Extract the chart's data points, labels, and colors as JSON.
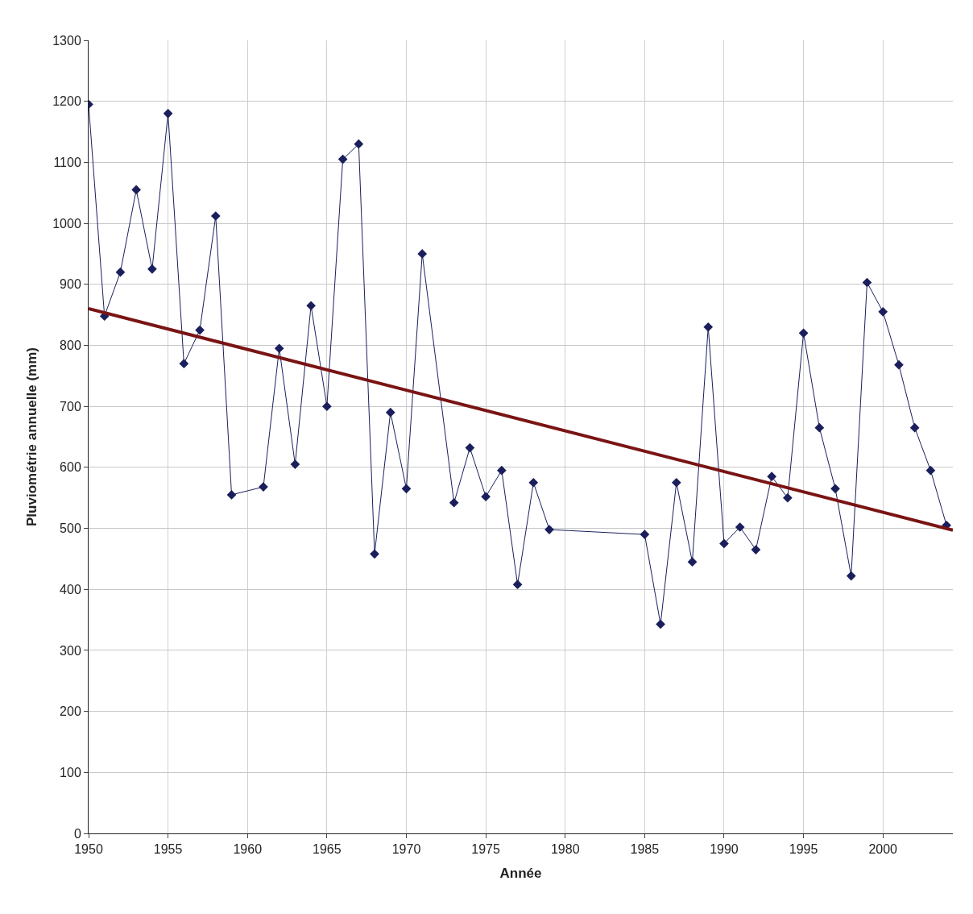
{
  "chart_data": {
    "type": "line",
    "xlabel": "Année",
    "ylabel": "Pluviométrie annuelle (mm)",
    "xlim": [
      1950,
      2004.4
    ],
    "xticks": [
      1950,
      1955,
      1960,
      1965,
      1970,
      1975,
      1980,
      1985,
      1990,
      1995,
      2000
    ],
    "ylim": [
      0,
      1300
    ],
    "yticks": [
      0,
      100,
      200,
      300,
      400,
      500,
      600,
      700,
      800,
      900,
      1000,
      1100,
      1200,
      1300
    ],
    "grid": true,
    "series": [
      {
        "color": "#1a1f5c",
        "marker": "diamond",
        "line_style": "solid",
        "x": [
          1950,
          1951,
          1952,
          1953,
          1954,
          1955,
          1956,
          1957,
          1958,
          1959,
          1961,
          1962,
          1963,
          1964,
          1965,
          1966,
          1967,
          1968,
          1969,
          1970,
          1971,
          1973,
          1974,
          1975,
          1976,
          1977,
          1978,
          1979,
          1985,
          1986,
          1987,
          1988,
          1989,
          1990,
          1991,
          1992,
          1993,
          1994,
          1995,
          1996,
          1997,
          1998,
          1999,
          2000,
          2001,
          2002,
          2003,
          2004
        ],
        "values": [
          1195,
          848,
          920,
          1055,
          925,
          1180,
          770,
          825,
          1012,
          555,
          568,
          795,
          605,
          865,
          700,
          1105,
          1130,
          458,
          690,
          565,
          950,
          542,
          632,
          552,
          595,
          408,
          575,
          498,
          490,
          343,
          575,
          445,
          830,
          475,
          502,
          465,
          585,
          550,
          820,
          665,
          565,
          422,
          903,
          855,
          768,
          665,
          595,
          505
        ]
      },
      {
        "color": "#7a1414",
        "marker": "none",
        "line_style": "solid",
        "x": [
          1950,
          2004.4
        ],
        "values": [
          860,
          497
        ]
      }
    ]
  }
}
